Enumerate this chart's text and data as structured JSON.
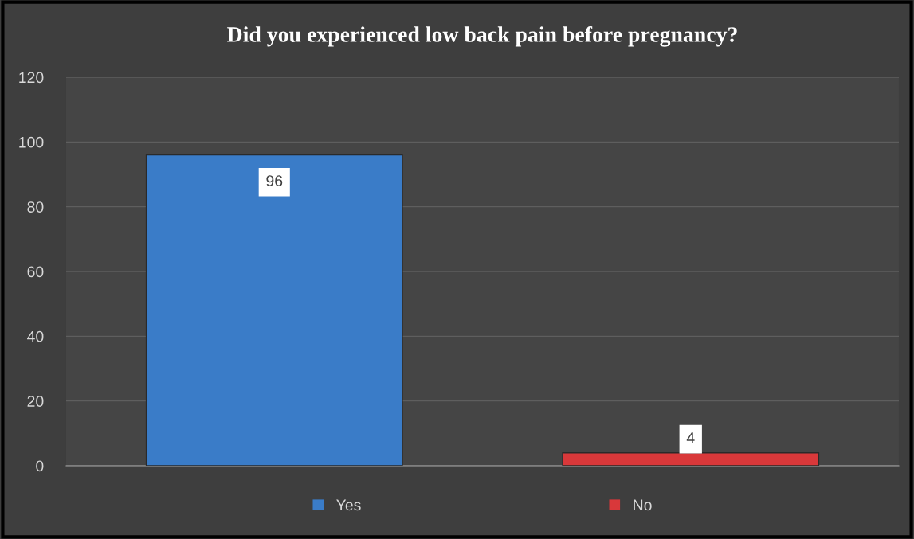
{
  "chart_data": {
    "type": "bar",
    "title": "Did you experienced low back pain before pregnancy?",
    "categories": [
      null,
      null
    ],
    "series": [
      {
        "name": "Yes",
        "color": "#3a7cc8",
        "values": [
          96,
          null
        ]
      },
      {
        "name": "No",
        "color": "#d9383a",
        "values": [
          null,
          4
        ]
      }
    ],
    "ylim": [
      0,
      120
    ],
    "yticks": [
      0,
      20,
      40,
      60,
      80,
      100,
      120
    ],
    "grid": "y",
    "legend": "bottom",
    "data_labels": true
  }
}
